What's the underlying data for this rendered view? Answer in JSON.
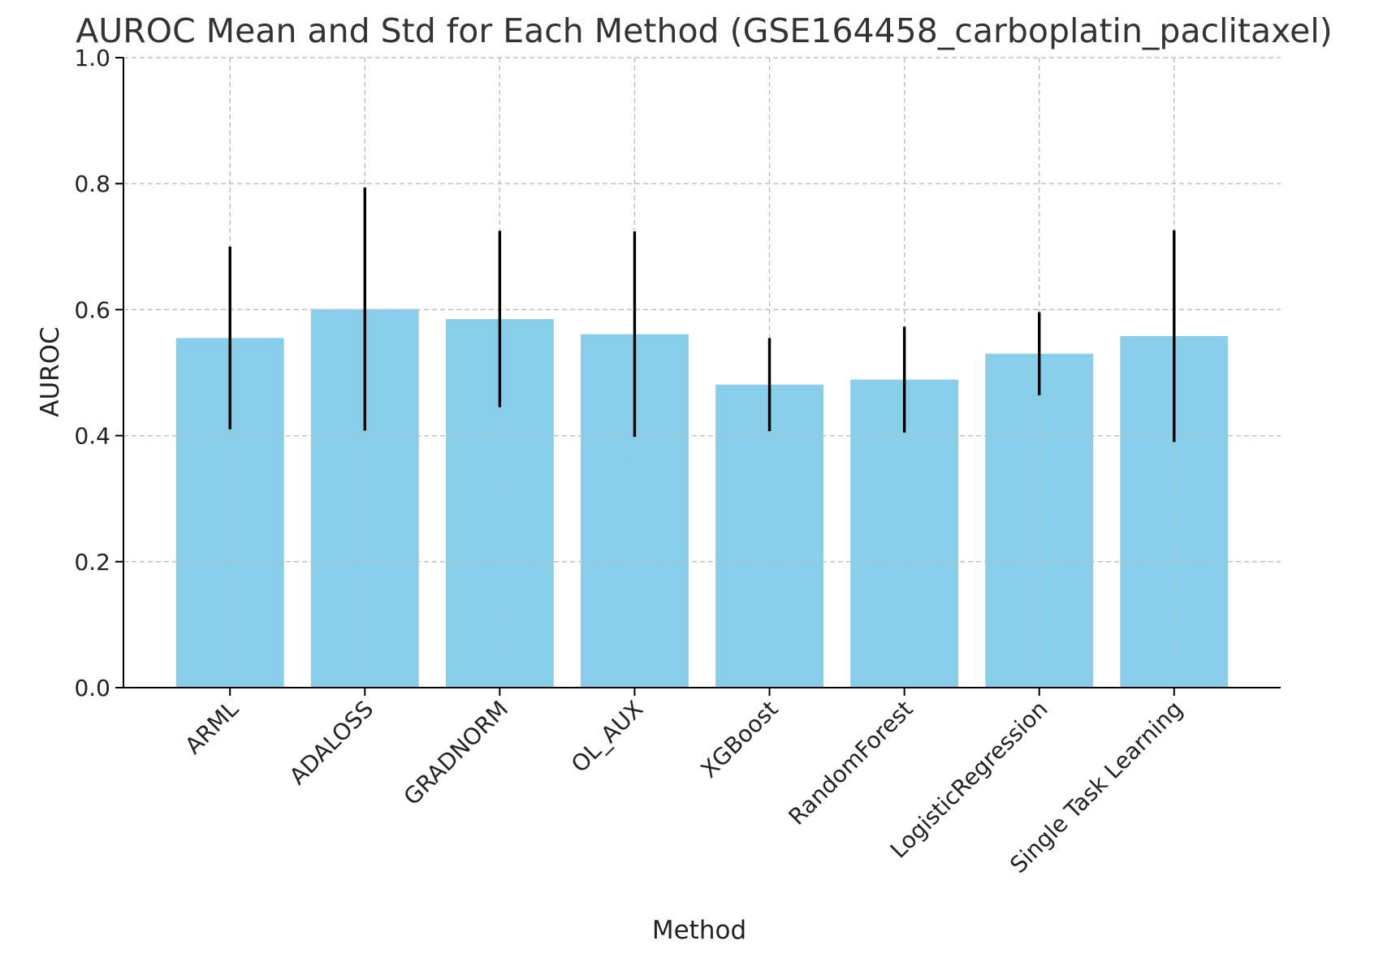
{
  "chart_data": {
    "type": "bar",
    "title": "AUROC Mean and Std for Each Method (GSE164458_carboplatin_paclitaxel)",
    "xlabel": "Method",
    "ylabel": "AUROC",
    "ylim": [
      0,
      1.0
    ],
    "y_ticks": [
      "0.0",
      "0.2",
      "0.4",
      "0.6",
      "0.8",
      "1.0"
    ],
    "y_tick_values": [
      0.0,
      0.2,
      0.4,
      0.6,
      0.8,
      1.0
    ],
    "grid": true,
    "bar_color": "#87CEEB",
    "error_color": "#000000",
    "categories": [
      "ARML",
      "ADALOSS",
      "GRADNORM",
      "OL_AUX",
      "XGBoost",
      "RandomForest",
      "LogisticRegression",
      "Single Task Learning"
    ],
    "values": [
      0.555,
      0.601,
      0.585,
      0.561,
      0.481,
      0.489,
      0.53,
      0.558
    ],
    "std": [
      0.145,
      0.193,
      0.14,
      0.163,
      0.074,
      0.084,
      0.066,
      0.168
    ]
  }
}
